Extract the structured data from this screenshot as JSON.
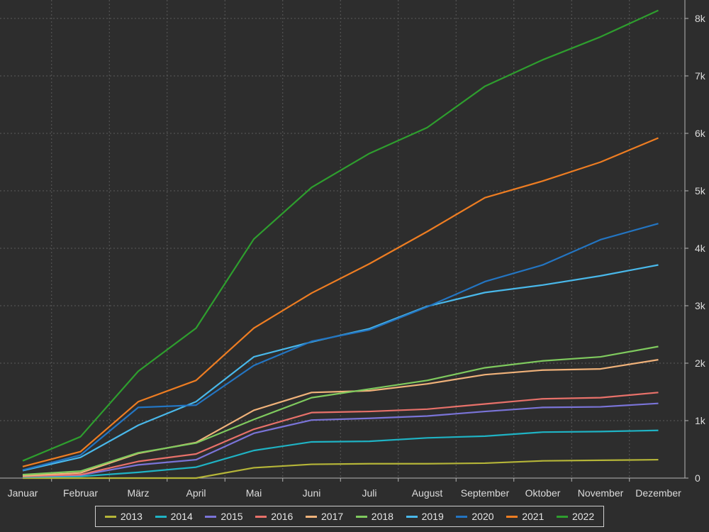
{
  "chart_data": {
    "type": "line",
    "title": "",
    "xlabel": "",
    "ylabel": "",
    "categories": [
      "Januar",
      "Februar",
      "März",
      "April",
      "Mai",
      "Juni",
      "Juli",
      "August",
      "September",
      "Oktober",
      "November",
      "Dezember"
    ],
    "ylim": [
      0,
      8200
    ],
    "yticks": [
      0,
      1000,
      2000,
      3000,
      4000,
      5000,
      6000,
      7000,
      8000
    ],
    "ytick_labels": [
      "0",
      "1k",
      "2k",
      "3k",
      "4k",
      "5k",
      "6k",
      "7k",
      "8k"
    ],
    "y_axis_side": "right",
    "grid": true,
    "legend_position": "bottom",
    "series": [
      {
        "name": "2013",
        "color": "#b5b538",
        "values": [
          0,
          0,
          0,
          0,
          180,
          240,
          250,
          250,
          260,
          300,
          310,
          320
        ]
      },
      {
        "name": "2014",
        "color": "#1fb3c4",
        "values": [
          20,
          30,
          100,
          190,
          480,
          630,
          640,
          700,
          730,
          800,
          810,
          830
        ]
      },
      {
        "name": "2015",
        "color": "#7a74d8",
        "values": [
          30,
          50,
          230,
          320,
          780,
          1010,
          1040,
          1080,
          1160,
          1230,
          1240,
          1300
        ]
      },
      {
        "name": "2016",
        "color": "#e8716a",
        "values": [
          30,
          60,
          290,
          420,
          850,
          1140,
          1160,
          1200,
          1290,
          1380,
          1400,
          1490
        ]
      },
      {
        "name": "2017",
        "color": "#f0b27a",
        "values": [
          40,
          90,
          430,
          620,
          1180,
          1490,
          1520,
          1640,
          1800,
          1880,
          1900,
          2060
        ]
      },
      {
        "name": "2018",
        "color": "#7fca5e",
        "values": [
          60,
          120,
          440,
          610,
          1020,
          1400,
          1550,
          1700,
          1920,
          2040,
          2110,
          2290
        ]
      },
      {
        "name": "2019",
        "color": "#49b8ea",
        "values": [
          130,
          360,
          920,
          1330,
          2110,
          2370,
          2600,
          2990,
          3230,
          3360,
          3520,
          3710
        ]
      },
      {
        "name": "2020",
        "color": "#2375c2",
        "values": [
          140,
          400,
          1230,
          1270,
          1960,
          2380,
          2580,
          2980,
          3420,
          3710,
          4150,
          4430
        ]
      },
      {
        "name": "2021",
        "color": "#ee7d22",
        "values": [
          200,
          460,
          1330,
          1700,
          2610,
          3220,
          3730,
          4290,
          4880,
          5170,
          5500,
          5920
        ]
      },
      {
        "name": "2022",
        "color": "#2e9e2e",
        "values": [
          300,
          720,
          1860,
          2610,
          4160,
          5060,
          5650,
          6100,
          6820,
          7280,
          7680,
          8140
        ]
      }
    ]
  },
  "colors": {
    "background": "#2d2d2d",
    "grid": "#5a5a5a",
    "axis": "#b5b5b5",
    "text": "#dcdcdc"
  }
}
